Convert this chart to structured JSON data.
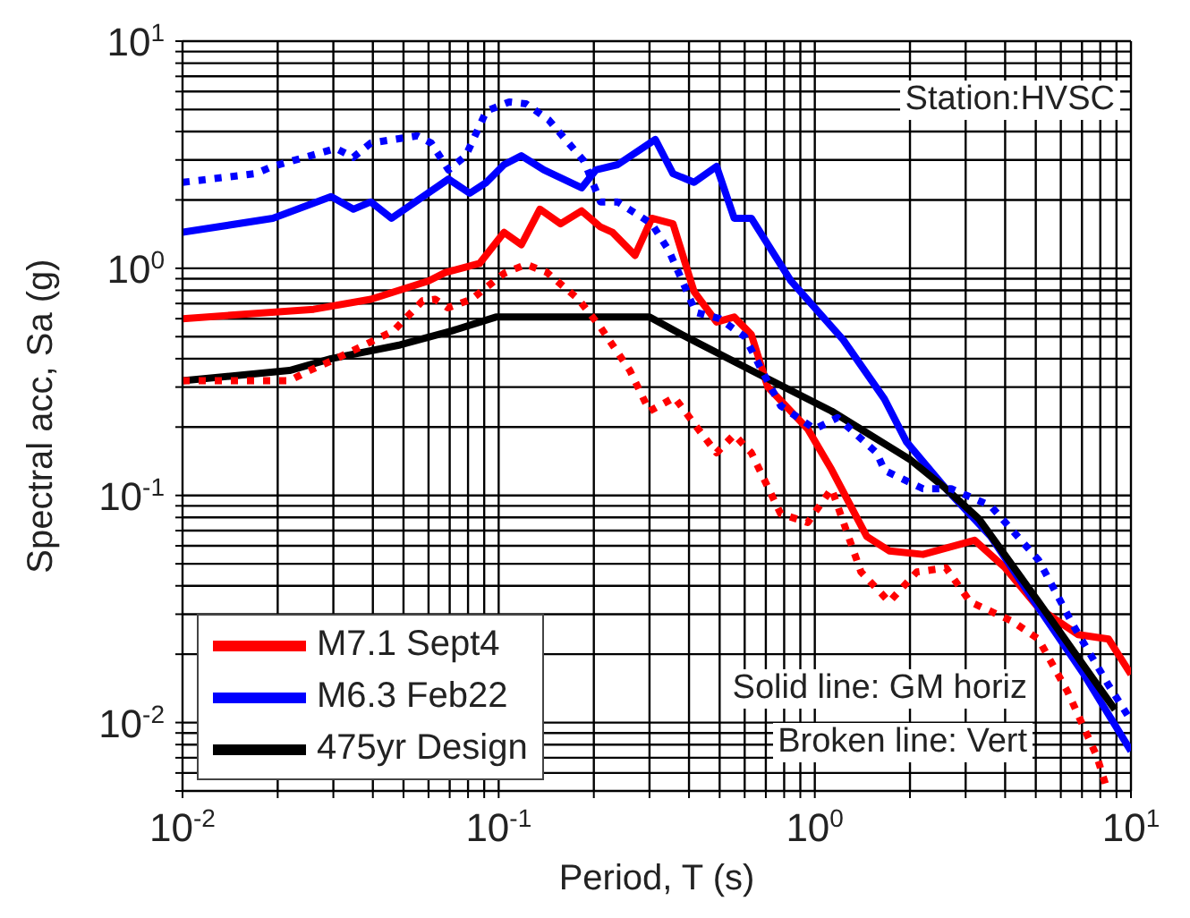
{
  "chart_data": {
    "type": "line",
    "xlabel": "Period, T (s)",
    "ylabel": "Spectral acc, Sa (g)",
    "log": "xy",
    "grid": true,
    "legend": "bottom left",
    "marker": "none",
    "xlim": [
      0.01,
      10
    ],
    "ylim": [
      0.005,
      10
    ],
    "xticks": [
      {
        "value": 0.01,
        "label": "10$^{-2}$"
      },
      {
        "value": 0.02,
        "label": null
      },
      {
        "value": 0.03,
        "label": null
      },
      {
        "value": 0.04,
        "label": null
      },
      {
        "value": 0.05,
        "label": null
      },
      {
        "value": 0.06,
        "label": null
      },
      {
        "value": 0.07,
        "label": null
      },
      {
        "value": 0.08,
        "label": null
      },
      {
        "value": 0.09,
        "label": null
      },
      {
        "value": 0.1,
        "label": "10$^{-1}$"
      },
      {
        "value": 0.2,
        "label": null
      },
      {
        "value": 0.3,
        "label": null
      },
      {
        "value": 0.4,
        "label": null
      },
      {
        "value": 0.5,
        "label": null
      },
      {
        "value": 0.6,
        "label": null
      },
      {
        "value": 0.7,
        "label": null
      },
      {
        "value": 0.8,
        "label": null
      },
      {
        "value": 0.9,
        "label": null
      },
      {
        "value": 1,
        "label": "10$^{0}$"
      },
      {
        "value": 2,
        "label": null
      },
      {
        "value": 3,
        "label": null
      },
      {
        "value": 4,
        "label": null
      },
      {
        "value": 5,
        "label": null
      },
      {
        "value": 6,
        "label": null
      },
      {
        "value": 7,
        "label": null
      },
      {
        "value": 8,
        "label": null
      },
      {
        "value": 9,
        "label": null
      },
      {
        "value": 10,
        "label": "10$^{1}$"
      }
    ],
    "yticks": [
      {
        "value": 0.005,
        "label": null
      },
      {
        "value": 0.006,
        "label": null
      },
      {
        "value": 0.007,
        "label": null
      },
      {
        "value": 0.008,
        "label": null
      },
      {
        "value": 0.009,
        "label": null
      },
      {
        "value": 0.01,
        "label": "10$^{-2}$"
      },
      {
        "value": 0.02,
        "label": null
      },
      {
        "value": 0.03,
        "label": null
      },
      {
        "value": 0.04,
        "label": null
      },
      {
        "value": 0.05,
        "label": null
      },
      {
        "value": 0.06,
        "label": null
      },
      {
        "value": 0.07,
        "label": null
      },
      {
        "value": 0.08,
        "label": null
      },
      {
        "value": 0.09,
        "label": null
      },
      {
        "value": 0.1,
        "label": "10$^{-1}$"
      },
      {
        "value": 0.2,
        "label": null
      },
      {
        "value": 0.3,
        "label": null
      },
      {
        "value": 0.4,
        "label": null
      },
      {
        "value": 0.5,
        "label": null
      },
      {
        "value": 0.6,
        "label": null
      },
      {
        "value": 0.7,
        "label": null
      },
      {
        "value": 0.8,
        "label": null
      },
      {
        "value": 0.9,
        "label": null
      },
      {
        "value": 1,
        "label": "10$^{0}$"
      },
      {
        "value": 2,
        "label": null
      },
      {
        "value": 3,
        "label": null
      },
      {
        "value": 4,
        "label": null
      },
      {
        "value": 5,
        "label": null
      },
      {
        "value": 6,
        "label": null
      },
      {
        "value": 7,
        "label": null
      },
      {
        "value": 8,
        "label": null
      },
      {
        "value": 9,
        "label": null
      },
      {
        "value": 10,
        "label": "10$^{1}$"
      }
    ],
    "annotations": [
      "Station:HVSC",
      "Solid line: GM horiz",
      "Broken line: Vert"
    ],
    "series": [
      {
        "name": "M7.1 Sept4",
        "color": "#ff0000",
        "line_style": "solid",
        "x": [
          0.01,
          0.026,
          0.0394,
          0.06,
          0.068,
          0.087,
          0.104,
          0.118,
          0.135,
          0.157,
          0.183,
          0.21,
          0.229,
          0.27,
          0.305,
          0.356,
          0.415,
          0.489,
          0.556,
          0.63,
          0.71,
          0.95,
          1.13,
          1.46,
          1.72,
          2.2,
          3.2,
          4.0,
          5.1,
          6.8,
          8.5,
          10
        ],
        "values": [
          0.6,
          0.66,
          0.73,
          0.88,
          0.96,
          1.05,
          1.44,
          1.27,
          1.82,
          1.57,
          1.79,
          1.52,
          1.44,
          1.14,
          1.66,
          1.57,
          0.79,
          0.58,
          0.61,
          0.51,
          0.3,
          0.196,
          0.13,
          0.066,
          0.057,
          0.055,
          0.0635,
          0.048,
          0.032,
          0.0244,
          0.0233,
          0.0163
        ]
      },
      {
        "name": "M6.3 Feb22",
        "color": "#0000ff",
        "line_style": "solid",
        "x": [
          0.01,
          0.0193,
          0.0295,
          0.0347,
          0.0394,
          0.0458,
          0.0694,
          0.081,
          0.0915,
          0.104,
          0.118,
          0.139,
          0.183,
          0.203,
          0.238,
          0.313,
          0.356,
          0.415,
          0.489,
          0.556,
          0.63,
          0.84,
          1.23,
          1.66,
          1.95,
          2.6,
          3.6,
          5.1,
          7.1,
          10
        ],
        "values": [
          1.44,
          1.66,
          2.07,
          1.82,
          1.96,
          1.66,
          2.47,
          2.14,
          2.39,
          2.86,
          3.13,
          2.71,
          2.26,
          2.71,
          2.86,
          3.69,
          2.61,
          2.39,
          2.81,
          1.66,
          1.66,
          0.88,
          0.484,
          0.266,
          0.172,
          0.107,
          0.066,
          0.032,
          0.0163,
          0.0075
        ]
      },
      {
        "name": "475yr Design",
        "color": "#000000",
        "line_style": "solid",
        "x": [
          0.01,
          0.0218,
          0.0295,
          0.0488,
          0.071,
          0.098,
          0.3,
          0.38,
          0.63,
          1.13,
          2.0,
          2.6,
          3.3,
          5.1,
          8.9
        ],
        "values": [
          0.32,
          0.355,
          0.4,
          0.46,
          0.53,
          0.61,
          0.61,
          0.51,
          0.355,
          0.235,
          0.144,
          0.107,
          0.079,
          0.034,
          0.0114
        ]
      },
      {
        "color": "#ff0000",
        "line_style": "dotted",
        "x": [
          0.01,
          0.0218,
          0.0247,
          0.0306,
          0.0465,
          0.0575,
          0.063,
          0.069,
          0.082,
          0.104,
          0.122,
          0.142,
          0.179,
          0.21,
          0.26,
          0.3,
          0.36,
          0.415,
          0.489,
          0.556,
          0.63,
          0.78,
          0.95,
          1.13,
          1.4,
          1.72,
          2.1,
          2.6,
          3.1,
          4.2,
          5.1,
          6.3,
          7.8,
          8.4
        ],
        "values": [
          0.32,
          0.32,
          0.35,
          0.4,
          0.53,
          0.72,
          0.73,
          0.67,
          0.73,
          0.95,
          1.04,
          0.96,
          0.73,
          0.55,
          0.355,
          0.235,
          0.27,
          0.207,
          0.154,
          0.185,
          0.154,
          0.083,
          0.076,
          0.107,
          0.046,
          0.034,
          0.046,
          0.048,
          0.034,
          0.028,
          0.0233,
          0.0137,
          0.0071,
          0.0051
        ]
      },
      {
        "color": "#0000ff",
        "line_style": "dotted",
        "x": [
          0.01,
          0.017,
          0.0193,
          0.0306,
          0.0347,
          0.0394,
          0.0553,
          0.0612,
          0.0694,
          0.0787,
          0.0915,
          0.108,
          0.122,
          0.144,
          0.186,
          0.21,
          0.238,
          0.305,
          0.345,
          0.394,
          0.42,
          0.5,
          0.6,
          0.68,
          0.78,
          1.0,
          1.18,
          1.57,
          1.66,
          2.2,
          2.7,
          3.6,
          5.1,
          6.6,
          8.5,
          10
        ],
        "values": [
          2.39,
          2.61,
          2.81,
          3.37,
          3.08,
          3.56,
          3.83,
          3.56,
          2.71,
          3.13,
          4.93,
          5.4,
          5.3,
          4.5,
          2.97,
          1.96,
          1.96,
          1.57,
          1.2,
          0.79,
          0.64,
          0.6,
          0.5,
          0.355,
          0.248,
          0.196,
          0.22,
          0.154,
          0.129,
          0.107,
          0.107,
          0.09,
          0.052,
          0.0265,
          0.0146,
          0.0102
        ]
      }
    ]
  }
}
